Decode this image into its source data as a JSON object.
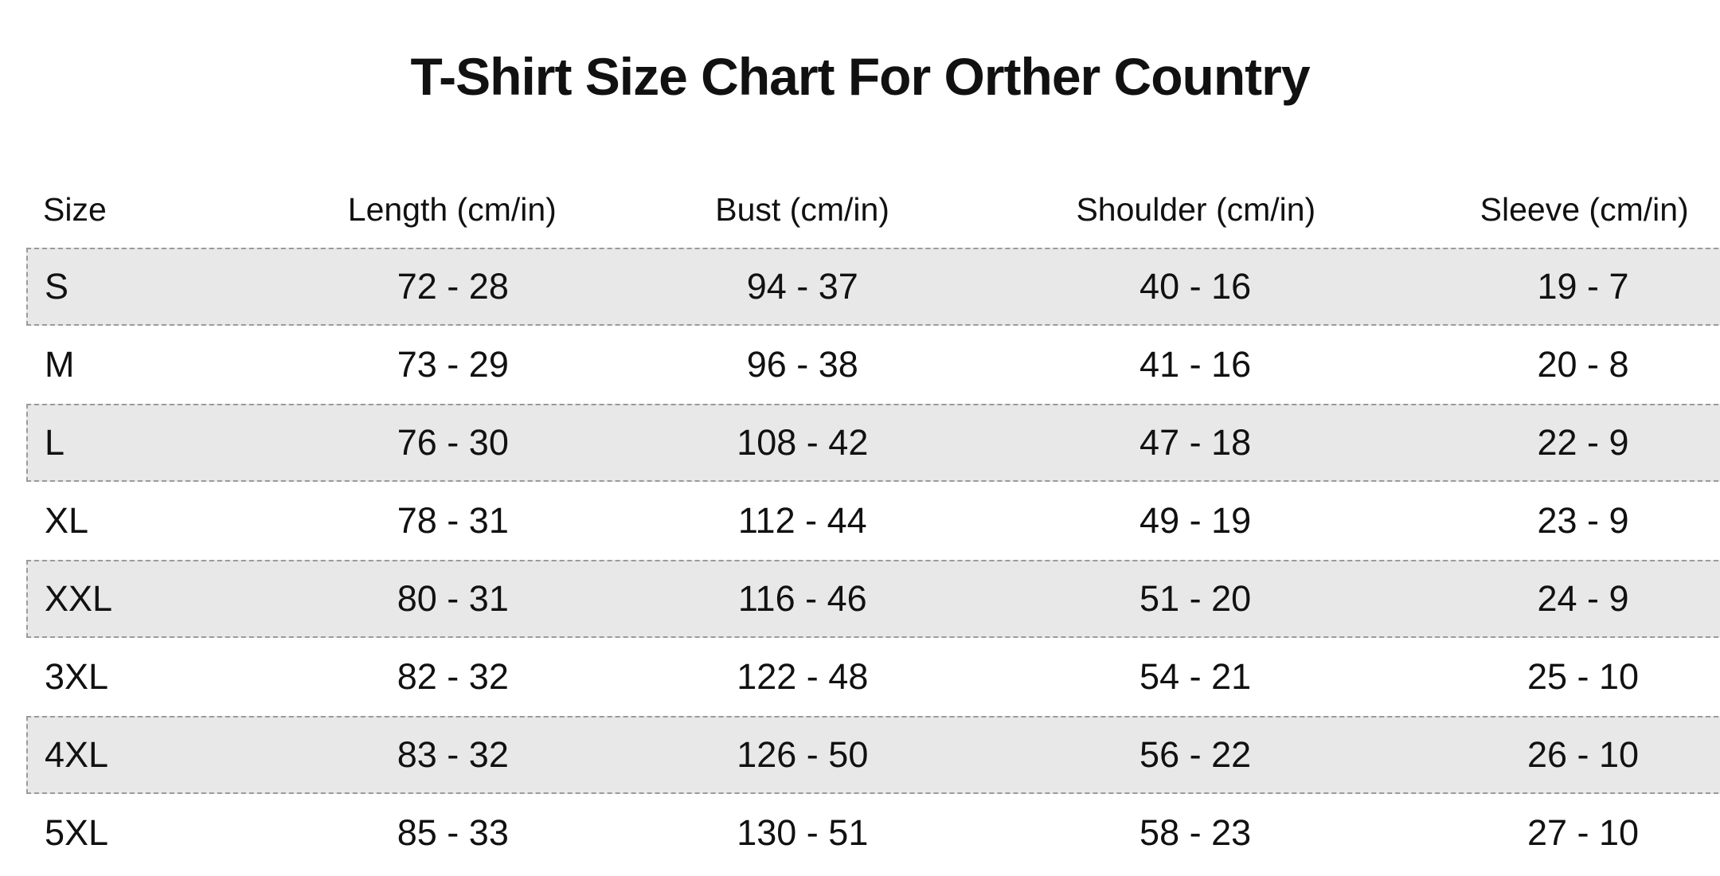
{
  "title": "T-Shirt Size Chart For Orther Country",
  "table": {
    "headers": {
      "size": "Size",
      "length": "Length (cm/in)",
      "bust": "Bust (cm/in)",
      "shoulder": "Shoulder (cm/in)",
      "sleeve": "Sleeve (cm/in)"
    },
    "rows": [
      {
        "size": "S",
        "length": "72 - 28",
        "bust": "94 - 37",
        "shoulder": "40 - 16",
        "sleeve": "19 - 7"
      },
      {
        "size": "M",
        "length": "73 - 29",
        "bust": "96 - 38",
        "shoulder": "41 - 16",
        "sleeve": "20 - 8"
      },
      {
        "size": "L",
        "length": "76 - 30",
        "bust": "108 - 42",
        "shoulder": "47 - 18",
        "sleeve": "22 - 9"
      },
      {
        "size": "XL",
        "length": "78 - 31",
        "bust": "112 - 44",
        "shoulder": "49 - 19",
        "sleeve": "23 - 9"
      },
      {
        "size": "XXL",
        "length": "80 - 31",
        "bust": "116 - 46",
        "shoulder": "51 - 20",
        "sleeve": "24 - 9"
      },
      {
        "size": "3XL",
        "length": "82 - 32",
        "bust": "122 - 48",
        "shoulder": "54 - 21",
        "sleeve": "25 - 10"
      },
      {
        "size": "4XL",
        "length": "83 - 32",
        "bust": "126 - 50",
        "shoulder": "56 - 22",
        "sleeve": "26 - 10"
      },
      {
        "size": "5XL",
        "length": "85 - 33",
        "bust": "130 - 51",
        "shoulder": "58 - 23",
        "sleeve": "27 - 10"
      }
    ]
  },
  "colors": {
    "background": "#ffffff",
    "text": "#111111",
    "row_shade": "#e8e8e8",
    "row_border_dash": "#9b9b9b"
  }
}
